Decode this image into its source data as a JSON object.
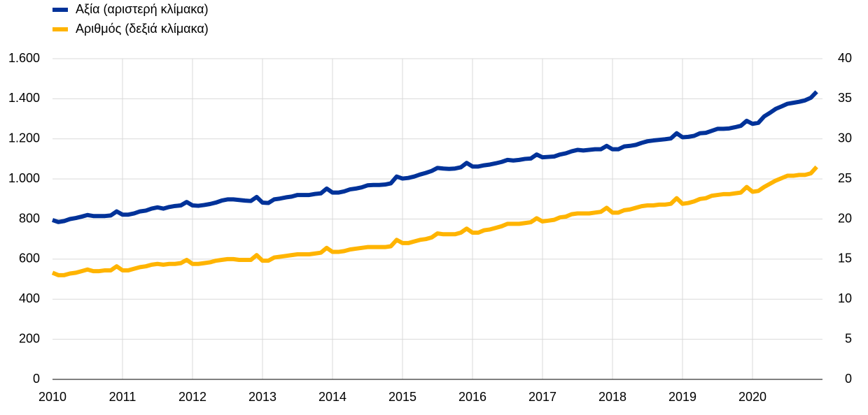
{
  "chart_data": {
    "type": "line",
    "categories": [
      "2010",
      null,
      null,
      null,
      null,
      null,
      null,
      null,
      null,
      null,
      null,
      null,
      "2011",
      null,
      null,
      null,
      null,
      null,
      null,
      null,
      null,
      null,
      null,
      null,
      "2012",
      null,
      null,
      null,
      null,
      null,
      null,
      null,
      null,
      null,
      null,
      null,
      "2013",
      null,
      null,
      null,
      null,
      null,
      null,
      null,
      null,
      null,
      null,
      null,
      "2014",
      null,
      null,
      null,
      null,
      null,
      null,
      null,
      null,
      null,
      null,
      null,
      "2015",
      null,
      null,
      null,
      null,
      null,
      null,
      null,
      null,
      null,
      null,
      null,
      "2016",
      null,
      null,
      null,
      null,
      null,
      null,
      null,
      null,
      null,
      null,
      null,
      "2017",
      null,
      null,
      null,
      null,
      null,
      null,
      null,
      null,
      null,
      null,
      null,
      "2018",
      null,
      null,
      null,
      null,
      null,
      null,
      null,
      null,
      null,
      null,
      null,
      "2019",
      null,
      null,
      null,
      null,
      null,
      null,
      null,
      null,
      null,
      null,
      null,
      "2020",
      null,
      null,
      null,
      null,
      null,
      null,
      null,
      null,
      null,
      null,
      null
    ],
    "series": [
      {
        "name": "Αξία (αριστερή κλίμακα)",
        "color": "#003299",
        "axis": "y",
        "values": [
          795,
          785,
          790,
          800,
          805,
          812,
          820,
          815,
          815,
          815,
          818,
          838,
          822,
          822,
          828,
          838,
          842,
          852,
          858,
          852,
          860,
          865,
          868,
          885,
          868,
          866,
          870,
          875,
          882,
          892,
          898,
          898,
          895,
          892,
          890,
          910,
          882,
          880,
          898,
          902,
          908,
          912,
          920,
          920,
          920,
          925,
          928,
          952,
          932,
          932,
          938,
          948,
          952,
          958,
          968,
          970,
          970,
          972,
          978,
          1012,
          1002,
          1005,
          1012,
          1022,
          1030,
          1040,
          1055,
          1052,
          1050,
          1052,
          1058,
          1080,
          1062,
          1062,
          1068,
          1072,
          1078,
          1085,
          1095,
          1092,
          1095,
          1100,
          1102,
          1122,
          1108,
          1110,
          1112,
          1122,
          1128,
          1138,
          1145,
          1142,
          1145,
          1148,
          1148,
          1165,
          1148,
          1148,
          1162,
          1165,
          1170,
          1180,
          1188,
          1192,
          1195,
          1198,
          1202,
          1228,
          1208,
          1210,
          1215,
          1228,
          1230,
          1240,
          1250,
          1250,
          1252,
          1258,
          1265,
          1290,
          1275,
          1280,
          1312,
          1330,
          1350,
          1362,
          1375,
          1380,
          1385,
          1392,
          1405,
          1435
        ]
      },
      {
        "name": "Αριθμός (δεξιά κλίμακα)",
        "color": "#ffb400",
        "axis": "y2",
        "values": [
          13.3,
          13.0,
          13.0,
          13.2,
          13.3,
          13.5,
          13.7,
          13.5,
          13.5,
          13.6,
          13.6,
          14.1,
          13.6,
          13.6,
          13.8,
          14.0,
          14.1,
          14.3,
          14.4,
          14.3,
          14.4,
          14.4,
          14.5,
          14.9,
          14.4,
          14.4,
          14.5,
          14.6,
          14.8,
          14.9,
          15.0,
          15.0,
          14.9,
          14.9,
          14.9,
          15.5,
          14.8,
          14.8,
          15.2,
          15.3,
          15.4,
          15.5,
          15.6,
          15.6,
          15.6,
          15.7,
          15.8,
          16.4,
          15.9,
          15.9,
          16.0,
          16.2,
          16.3,
          16.4,
          16.5,
          16.5,
          16.5,
          16.5,
          16.6,
          17.4,
          17.0,
          17.0,
          17.2,
          17.4,
          17.5,
          17.7,
          18.2,
          18.1,
          18.1,
          18.1,
          18.3,
          18.8,
          18.3,
          18.3,
          18.6,
          18.7,
          18.9,
          19.1,
          19.4,
          19.4,
          19.4,
          19.5,
          19.6,
          20.1,
          19.7,
          19.8,
          19.9,
          20.2,
          20.3,
          20.6,
          20.7,
          20.7,
          20.7,
          20.8,
          20.9,
          21.4,
          20.8,
          20.8,
          21.1,
          21.2,
          21.4,
          21.6,
          21.7,
          21.7,
          21.8,
          21.8,
          21.9,
          22.6,
          21.9,
          22.0,
          22.2,
          22.5,
          22.6,
          22.9,
          23.0,
          23.1,
          23.1,
          23.2,
          23.3,
          24.0,
          23.4,
          23.5,
          24.0,
          24.4,
          24.8,
          25.1,
          25.4,
          25.4,
          25.5,
          25.5,
          25.7,
          26.5
        ]
      }
    ],
    "ylim": [
      0,
      1600
    ],
    "yticks": [
      0,
      200,
      400,
      600,
      800,
      {
        "value": 1000,
        "label": "1.000"
      },
      {
        "value": 1200,
        "label": "1.200"
      },
      {
        "value": 1400,
        "label": "1.400"
      },
      {
        "value": 1600,
        "label": "1.600"
      }
    ],
    "y2lim": [
      0,
      40
    ],
    "y2ticks": [
      0,
      5,
      10,
      15,
      20,
      25,
      30,
      35,
      40
    ],
    "grid": true,
    "legend": "top-left"
  }
}
